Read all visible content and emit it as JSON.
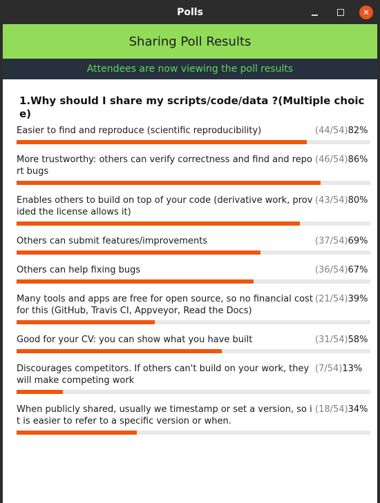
{
  "window": {
    "title": "Polls",
    "controls": {
      "minimize": "minimize-icon",
      "maximize": "maximize-icon",
      "close": "close-icon"
    }
  },
  "header": {
    "title": "Sharing Poll Results"
  },
  "status": {
    "text": "Attendees are now viewing the poll results"
  },
  "colors": {
    "header_green": "#92dc5a",
    "status_bg": "#26313d",
    "status_text": "#5fd460",
    "bar_fill": "#f0560c",
    "close_button": "#e95420"
  },
  "poll": {
    "question": "1.Why should I share my scripts/code/data ?(Multiple choice)",
    "options": [
      {
        "label": "Easier to find and reproduce (scientific reproducibility)",
        "count": "(44/54)",
        "percent": "82%",
        "fraction": 0.82
      },
      {
        "label": "More trustworthy: others can verify correctness and find and report bugs",
        "count": "(46/54)",
        "percent": "86%",
        "fraction": 0.86
      },
      {
        "label": "Enables others to build on top of your code (derivative work, provided the license allows it)",
        "count": "(43/54)",
        "percent": "80%",
        "fraction": 0.8
      },
      {
        "label": "Others can submit features/improvements",
        "count": "(37/54)",
        "percent": "69%",
        "fraction": 0.69
      },
      {
        "label": "Others can help fixing bugs",
        "count": "(36/54)",
        "percent": "67%",
        "fraction": 0.67
      },
      {
        "label": "Many tools and apps are free for open source, so no financial cost for this (GitHub, Travis CI, Appveyor, Read the Docs)",
        "count": "(21/54)",
        "percent": "39%",
        "fraction": 0.39
      },
      {
        "label": "Good for your CV: you can show what you have built",
        "count": "(31/54)",
        "percent": "58%",
        "fraction": 0.58
      },
      {
        "label": "Discourages competitors. If others can't build on your work, they will make competing work",
        "count": "(7/54)",
        "percent": "13%",
        "fraction": 0.13
      },
      {
        "label": "When publicly shared, usually we timestamp or set a version, so it is easier to refer to a specific version or when.",
        "count": "(18/54)",
        "percent": "34%",
        "fraction": 0.34
      }
    ]
  }
}
